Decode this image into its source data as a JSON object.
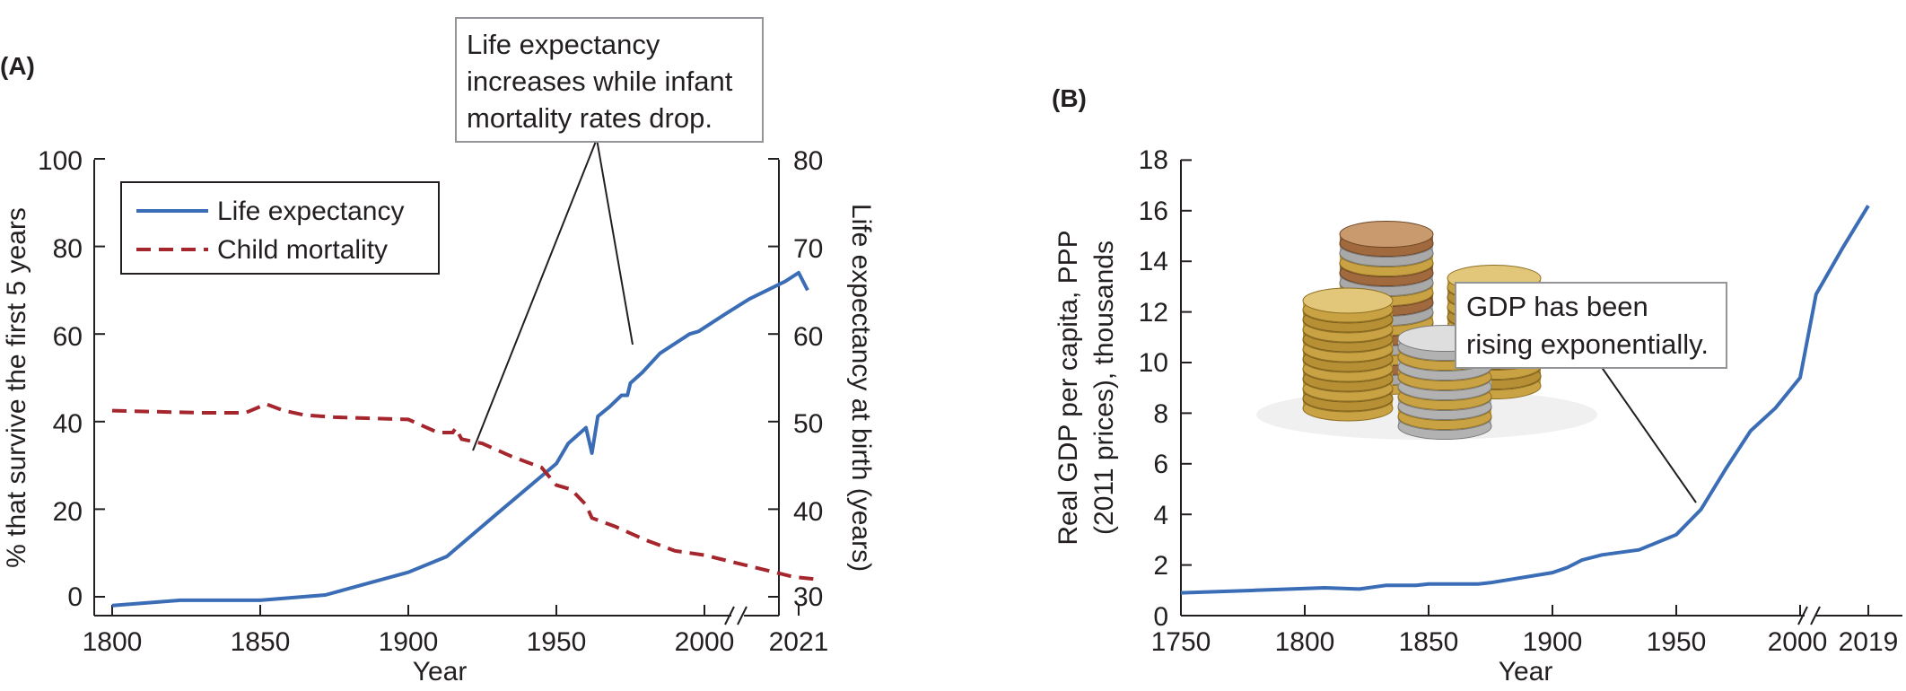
{
  "chart_data": [
    {
      "panel": "(A)",
      "type": "line",
      "x_ticks": [
        "1800",
        "1850",
        "1900",
        "1950",
        "2000",
        "2021"
      ],
      "xlabel": "Year",
      "ylabel_left": "% that survive the first 5 years",
      "ylabel_right": "Life expectancy at birth (years)",
      "yticks_left": [
        "0",
        "20",
        "40",
        "60",
        "80",
        "100"
      ],
      "yticks_right": [
        "30",
        "40",
        "50",
        "60",
        "70",
        "80"
      ],
      "ylim_left": [
        -3,
        100
      ],
      "ylim_right": [
        29,
        80
      ],
      "axis_break": true,
      "legend_placement": "top-left",
      "annotation": [
        "Life expectancy",
        "increases while infant",
        "mortality rates drop."
      ],
      "series": [
        {
          "name": "Life expectancy",
          "axis": "right",
          "style": "solid",
          "color": "#3a6db5",
          "points": [
            [
              1800,
              29
            ],
            [
              1823,
              29.6
            ],
            [
              1850,
              29.6
            ],
            [
              1872,
              30.2
            ],
            [
              1900,
              32.8
            ],
            [
              1913,
              34.6
            ],
            [
              1930,
              39.5
            ],
            [
              1950,
              45.2
            ],
            [
              1954,
              47.5
            ],
            [
              1960,
              49.3
            ],
            [
              1962,
              46.4
            ],
            [
              1964,
              50.6
            ],
            [
              1968,
              51.7
            ],
            [
              1972,
              53
            ],
            [
              1974,
              53
            ],
            [
              1975,
              54.4
            ],
            [
              1979,
              55.6
            ],
            [
              1985,
              57.8
            ],
            [
              1995,
              60
            ],
            [
              1998,
              60.3
            ],
            [
              2005,
              62.4
            ],
            [
              2010,
              64
            ],
            [
              2018,
              66
            ],
            [
              2021,
              67
            ],
            [
              2023,
              65
            ]
          ]
        },
        {
          "name": "Child mortality",
          "axis": "left",
          "style": "dashed",
          "color": "#a6262d",
          "points": [
            [
              1800,
              42.5
            ],
            [
              1830,
              42
            ],
            [
              1845,
              42
            ],
            [
              1852,
              44
            ],
            [
              1858,
              42.5
            ],
            [
              1865,
              41.5
            ],
            [
              1875,
              41
            ],
            [
              1900,
              40.5
            ],
            [
              1910,
              37.5
            ],
            [
              1915,
              37.5
            ],
            [
              1916,
              38.5
            ],
            [
              1918,
              36
            ],
            [
              1925,
              35
            ],
            [
              1935,
              32
            ],
            [
              1945,
              29.5
            ],
            [
              1950,
              25.5
            ],
            [
              1955,
              24.5
            ],
            [
              1960,
              21
            ],
            [
              1962,
              18
            ],
            [
              1970,
              16
            ],
            [
              1980,
              13
            ],
            [
              1990,
              10.5
            ],
            [
              2000,
              9.5
            ],
            [
              2010,
              7
            ],
            [
              2020,
              4.5
            ],
            [
              2025,
              4
            ]
          ]
        }
      ]
    },
    {
      "panel": "(B)",
      "type": "line",
      "x_ticks": [
        "1750",
        "1800",
        "1850",
        "1900",
        "1950",
        "2000",
        "2019"
      ],
      "xlabel": "Year",
      "ylabel_lines": [
        "Real GDP per capita, PPP",
        "(2011 prices), thousands"
      ],
      "yticks": [
        "0",
        "2",
        "4",
        "6",
        "8",
        "10",
        "12",
        "14",
        "16",
        "18"
      ],
      "ylim": [
        0,
        18
      ],
      "axis_break": true,
      "annotation": [
        "GDP has been",
        "rising exponentially."
      ],
      "series": [
        {
          "name": "",
          "style": "solid",
          "color": "#3a6db5",
          "points": [
            [
              1750,
              0.9
            ],
            [
              1780,
              1
            ],
            [
              1808,
              1.1
            ],
            [
              1822,
              1.05
            ],
            [
              1833,
              1.2
            ],
            [
              1845,
              1.2
            ],
            [
              1850,
              1.25
            ],
            [
              1870,
              1.25
            ],
            [
              1875,
              1.3
            ],
            [
              1900,
              1.7
            ],
            [
              1906,
              1.9
            ],
            [
              1912,
              2.2
            ],
            [
              1920,
              2.4
            ],
            [
              1935,
              2.6
            ],
            [
              1950,
              3.2
            ],
            [
              1960,
              4.2
            ],
            [
              1970,
              5.8
            ],
            [
              1980,
              7.3
            ],
            [
              1990,
              8.2
            ],
            [
              2000,
              9.4
            ],
            [
              2005,
              12.7
            ],
            [
              2012,
              14.5
            ],
            [
              2019,
              16.2
            ]
          ]
        }
      ]
    }
  ]
}
